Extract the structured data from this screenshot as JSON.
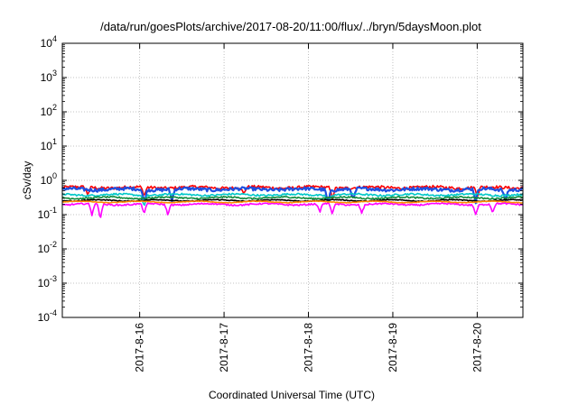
{
  "chart_data": {
    "type": "line",
    "title": "/data/run/goesPlots/archive/2017-08-20/11:00/flux/../bryn/5daysMoon.plot",
    "xlabel": "Coordinated Universal Time (UTC)",
    "ylabel": "cSv/day",
    "yscale": "log",
    "ylim": [
      0.0001,
      10000
    ],
    "y_ticks": [
      {
        "value": 0.0001,
        "base": "10",
        "exp": "-4"
      },
      {
        "value": 0.001,
        "base": "10",
        "exp": "-3"
      },
      {
        "value": 0.01,
        "base": "10",
        "exp": "-2"
      },
      {
        "value": 0.1,
        "base": "10",
        "exp": "-1"
      },
      {
        "value": 1,
        "base": "10",
        "exp": "0"
      },
      {
        "value": 10,
        "base": "10",
        "exp": "1"
      },
      {
        "value": 100,
        "base": "10",
        "exp": "2"
      },
      {
        "value": 1000,
        "base": "10",
        "exp": "3"
      },
      {
        "value": 10000,
        "base": "10",
        "exp": "4"
      }
    ],
    "xlim": [
      "2017-08-15T02:00",
      "2017-08-20T13:00"
    ],
    "x_ticks": [
      {
        "value": "2017-08-16T00:00",
        "label": "2017-8-16"
      },
      {
        "value": "2017-08-17T00:00",
        "label": "2017-8-17"
      },
      {
        "value": "2017-08-18T00:00",
        "label": "2017-8-18"
      },
      {
        "value": "2017-08-19T00:00",
        "label": "2017-8-19"
      },
      {
        "value": "2017-08-20T00:00",
        "label": "2017-8-20"
      }
    ],
    "grid": true,
    "series": [
      {
        "color": "#ff0000",
        "level": 0.62,
        "noise": 0.1,
        "dips": [
          [
            0.3,
            0.6
          ],
          [
            0.97,
            0.55
          ],
          [
            2.15,
            0.6
          ],
          [
            3.2,
            0.5
          ],
          [
            4.92,
            0.55
          ]
        ]
      },
      {
        "color": "#1f4fe0",
        "level": 0.55,
        "noise": 0.11,
        "dips": [
          [
            0.97,
            0.4
          ],
          [
            1.3,
            0.45
          ],
          [
            3.15,
            0.35
          ],
          [
            3.45,
            0.45
          ],
          [
            4.9,
            0.4
          ],
          [
            5.25,
            0.45
          ]
        ]
      },
      {
        "color": "#00c8c8",
        "level": 0.38,
        "noise": 0.06,
        "dips": [
          [
            0.97,
            0.45
          ],
          [
            3.15,
            0.55
          ]
        ]
      },
      {
        "color": "#0f8a3c",
        "level": 0.31,
        "noise": 0.05,
        "dips": []
      },
      {
        "color": "#000000",
        "level": 0.26,
        "noise": 0.03,
        "dips": []
      },
      {
        "color": "#ff00ff",
        "level": 0.2,
        "noise": 0.05,
        "dips": [
          [
            0.35,
            0.45
          ],
          [
            0.45,
            0.35
          ],
          [
            0.97,
            0.5
          ],
          [
            1.25,
            0.5
          ],
          [
            3.05,
            0.55
          ],
          [
            3.2,
            0.5
          ],
          [
            3.55,
            0.55
          ],
          [
            4.9,
            0.5
          ],
          [
            5.1,
            0.55
          ]
        ]
      },
      {
        "color": "#ff8c00",
        "level": 0.235,
        "noise": 0.02,
        "dips": []
      }
    ]
  }
}
